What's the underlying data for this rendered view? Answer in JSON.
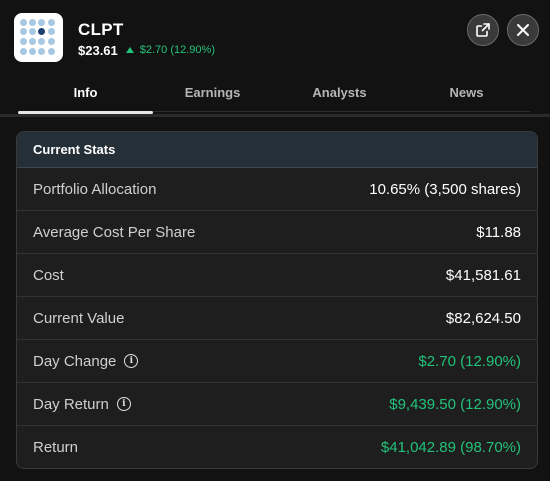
{
  "header": {
    "logo_icon": "clpt-dot-grid-logo",
    "ticker": "CLPT",
    "price": "$23.61",
    "change": "$2.70 (12.90%)",
    "change_color": "#22c27a",
    "open_external_icon": "open-external-icon",
    "close_icon": "close-icon"
  },
  "tabs": [
    {
      "label": "Info",
      "active": true
    },
    {
      "label": "Earnings",
      "active": false
    },
    {
      "label": "Analysts",
      "active": false
    },
    {
      "label": "News",
      "active": false
    }
  ],
  "stats": {
    "title": "Current Stats",
    "rows": [
      {
        "label": "Portfolio Allocation",
        "value": "10.65% (3,500 shares)"
      },
      {
        "label": "Average Cost Per Share",
        "value": "$11.88"
      },
      {
        "label": "Cost",
        "value": "$41,581.61"
      },
      {
        "label": "Current Value",
        "value": "$82,624.50"
      },
      {
        "label": "Day Change",
        "value": "$2.70 (12.90%)"
      },
      {
        "label": "Day Return",
        "value": "$9,439.50 (12.90%)"
      },
      {
        "label": "Return",
        "value": "$41,042.89 (98.70%)"
      }
    ]
  }
}
